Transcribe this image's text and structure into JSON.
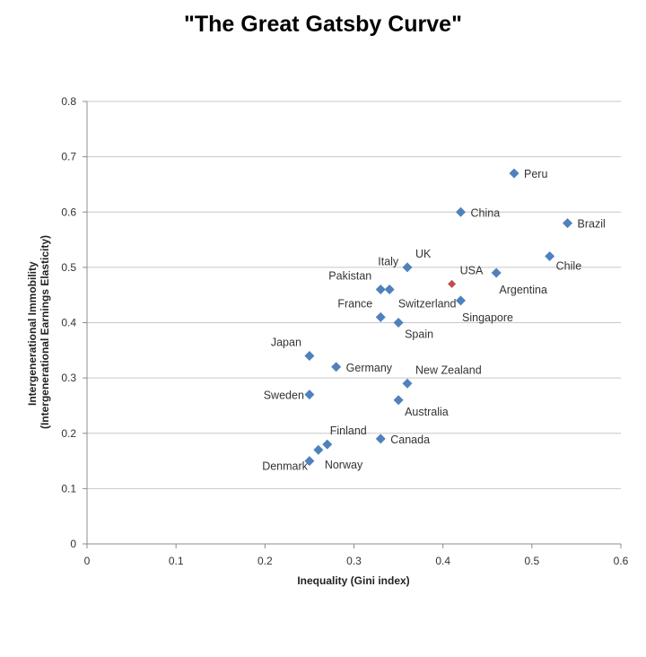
{
  "chart_data": {
    "type": "scatter",
    "title": "\"The Great Gatsby Curve\"",
    "xlabel": "Inequality (Gini index)",
    "ylabel_lines": [
      "Intergenerational Immobility",
      "(Intergenerational Earnings Elasticity)"
    ],
    "xlim": [
      0,
      0.6
    ],
    "ylim": [
      0,
      0.8
    ],
    "x_ticks": [
      0,
      0.1,
      0.2,
      0.3,
      0.4,
      0.5,
      0.6
    ],
    "x_tick_labels": [
      "0",
      "0.1",
      "0.2",
      "0.3",
      "0.4",
      "0.5",
      "0.6"
    ],
    "y_ticks": [
      0,
      0.1,
      0.2,
      0.3,
      0.4,
      0.5,
      0.6,
      0.7,
      0.8
    ],
    "y_tick_labels": [
      "0",
      "0.1",
      "0.2",
      "0.3",
      "0.4",
      "0.5",
      "0.6",
      "0.7",
      "0.8"
    ],
    "grid": true,
    "marker": "diamond",
    "colors": {
      "default": "#4f81bd",
      "highlight": "#c0504d",
      "highlight_label": "#e0504a"
    },
    "points": [
      {
        "label": "Peru",
        "x": 0.48,
        "y": 0.67,
        "label_pos": "right"
      },
      {
        "label": "China",
        "x": 0.42,
        "y": 0.6,
        "label_pos": "right"
      },
      {
        "label": "Brazil",
        "x": 0.54,
        "y": 0.58,
        "label_pos": "right"
      },
      {
        "label": "Chile",
        "x": 0.52,
        "y": 0.52,
        "label_pos": "below-right"
      },
      {
        "label": "UK",
        "x": 0.36,
        "y": 0.5,
        "label_pos": "above-right"
      },
      {
        "label": "Argentina",
        "x": 0.46,
        "y": 0.49,
        "label_pos": "below"
      },
      {
        "label": "USA",
        "x": 0.41,
        "y": 0.47,
        "label_pos": "above-right",
        "highlight": true
      },
      {
        "label": "Italy",
        "x": 0.33,
        "y": 0.46,
        "label_pos": "above-right"
      },
      {
        "label": "Pakistan",
        "x": 0.33,
        "y": 0.46,
        "label_pos": "above-left"
      },
      {
        "label": "Switzerland",
        "x": 0.34,
        "y": 0.46,
        "label_pos": "below"
      },
      {
        "label": "Singapore",
        "x": 0.42,
        "y": 0.44,
        "label_pos": "below"
      },
      {
        "label": "France",
        "x": 0.33,
        "y": 0.41,
        "label_pos": "above-left"
      },
      {
        "label": "Spain",
        "x": 0.35,
        "y": 0.4,
        "label_pos": "below-right"
      },
      {
        "label": "Japan",
        "x": 0.25,
        "y": 0.34,
        "label_pos": "above-left"
      },
      {
        "label": "Germany",
        "x": 0.28,
        "y": 0.32,
        "label_pos": "right"
      },
      {
        "label": "New Zealand",
        "x": 0.36,
        "y": 0.29,
        "label_pos": "above-right"
      },
      {
        "label": "Sweden",
        "x": 0.25,
        "y": 0.27,
        "label_pos": "left"
      },
      {
        "label": "Australia",
        "x": 0.35,
        "y": 0.26,
        "label_pos": "below-right"
      },
      {
        "label": "Canada",
        "x": 0.33,
        "y": 0.19,
        "label_pos": "right"
      },
      {
        "label": "Finland",
        "x": 0.27,
        "y": 0.18,
        "label_pos": "above-right"
      },
      {
        "label": "Norway",
        "x": 0.26,
        "y": 0.17,
        "label_pos": "below-right"
      },
      {
        "label": "Denmark",
        "x": 0.25,
        "y": 0.15,
        "label_pos": "left"
      }
    ]
  }
}
